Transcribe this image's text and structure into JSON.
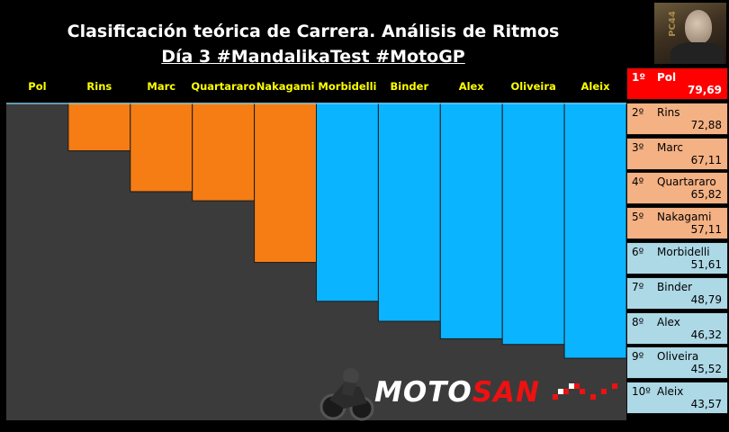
{
  "header": {
    "title": "Clasificación teórica de Carrera. Análisis de Ritmos",
    "subtitle": "Día 3 #MandalikaTest #MotoGP",
    "photo_label": "PC44"
  },
  "logo": {
    "part1": "MOTO",
    "part2": "SAN"
  },
  "colors": {
    "first": "#ff0000",
    "top_group": "#f57d14",
    "bottom_group": "#0ab4ff",
    "panel_top": "#f4b183",
    "panel_bottom": "#add8e6",
    "plot_bg": "#3b3b3b",
    "label": "#ffff00"
  },
  "chart_data": {
    "type": "bar",
    "categories": [
      "Pol",
      "Rins",
      "Marc",
      "Quartararo",
      "Nakagami",
      "Morbidelli",
      "Binder",
      "Alex",
      "Oliveira",
      "Aleix"
    ],
    "values": [
      79.69,
      72.88,
      67.11,
      65.82,
      57.11,
      51.61,
      48.79,
      46.32,
      45.52,
      43.57
    ],
    "title": "Clasificación teórica de Carrera. Análisis de Ritmos",
    "subtitle": "Día 3 #MandalikaTest #MotoGP",
    "xlabel": "",
    "ylabel": "",
    "ylim": [
      0,
      100
    ],
    "grid": false,
    "legend": "none"
  },
  "standings": [
    {
      "pos": "1º",
      "name": "Pol",
      "value": "79,69",
      "group": "first"
    },
    {
      "pos": "2º",
      "name": "Rins",
      "value": "72,88",
      "group": "top"
    },
    {
      "pos": "3º",
      "name": "Marc",
      "value": "67,11",
      "group": "top"
    },
    {
      "pos": "4º",
      "name": "Quartararo",
      "value": "65,82",
      "group": "top"
    },
    {
      "pos": "5º",
      "name": "Nakagami",
      "value": "57,11",
      "group": "top"
    },
    {
      "pos": "6º",
      "name": "Morbidelli",
      "value": "51,61",
      "group": "bottom"
    },
    {
      "pos": "7º",
      "name": "Binder",
      "value": "48,79",
      "group": "bottom"
    },
    {
      "pos": "8º",
      "name": "Alex",
      "value": "46,32",
      "group": "bottom"
    },
    {
      "pos": "9º",
      "name": "Oliveira",
      "value": "45,52",
      "group": "bottom"
    },
    {
      "pos": "10º",
      "name": "Aleix",
      "value": "43,57",
      "group": "bottom"
    }
  ]
}
